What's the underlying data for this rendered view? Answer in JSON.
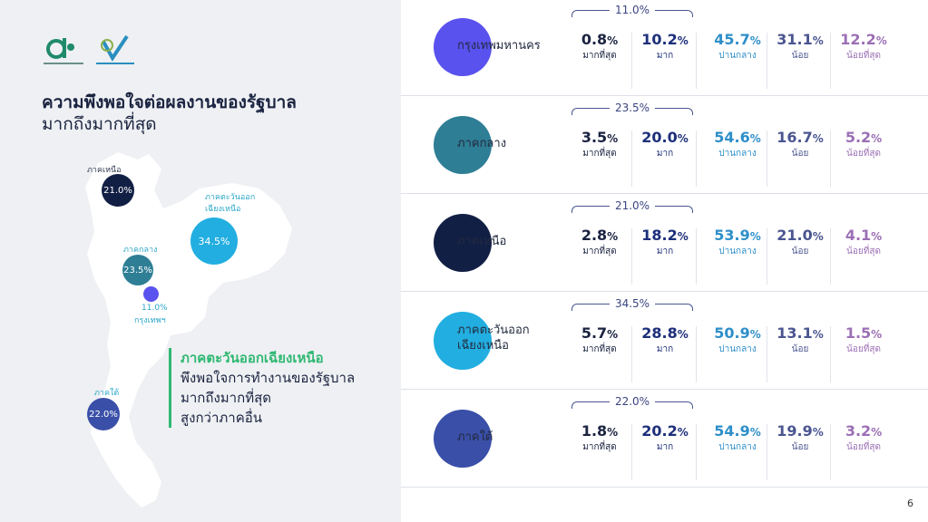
{
  "left": {
    "title": "ความพึงพอใจต่อผลงานของรัฐบาล",
    "subtitle": "มากถึงมากที่สุด",
    "map_bubbles": [
      {
        "label": "ภาคเหนือ",
        "value": "21.0%",
        "color": "#121f45"
      },
      {
        "label": "ภาคตะวันออก\nเฉียงเหนือ",
        "value": "34.5%",
        "color": "#22aee0"
      },
      {
        "label": "ภาคกลาง",
        "value": "23.5%",
        "color": "#2e7e95"
      },
      {
        "label": "กรุงเทพฯ",
        "value": "11.0%",
        "color": "#5a52ee"
      },
      {
        "label": "ภาคใต้",
        "value": "22.0%",
        "color": "#3a4fa8"
      }
    ],
    "callout": {
      "head": "ภาคตะวันออกเฉียงเหนือ",
      "lines": [
        "พึงพอใจการทำงานของรัฐบาล",
        "มากถึงมากที่สุด",
        "สูงกว่าภาคอื่น"
      ]
    }
  },
  "labels": {
    "l1": "มากที่สุด",
    "l2": "มาก",
    "l3": "ปานกลาง",
    "l4": "น้อย",
    "l5": "น้อยที่สุด"
  },
  "colors": {
    "c1": "#1a2340",
    "c2": "#1d2f7a",
    "c3": "#2e8fc9",
    "c4": "#4a5590",
    "c5": "#9b6fb5"
  },
  "regions": [
    {
      "name": "กรุงเทพมหานคร",
      "color": "#5a52ee",
      "top": "11.0%",
      "values": [
        "0.8",
        "10.2",
        "45.7",
        "31.1",
        "12.2"
      ]
    },
    {
      "name": "ภาคกลาง",
      "color": "#2e7e95",
      "top": "23.5%",
      "values": [
        "3.5",
        "20.0",
        "54.6",
        "16.7",
        "5.2"
      ]
    },
    {
      "name": "ภาคเหนือ",
      "color": "#121f45",
      "top": "21.0%",
      "values": [
        "2.8",
        "18.2",
        "53.9",
        "21.0",
        "4.1"
      ]
    },
    {
      "name": "ภาคตะวันออก\nเฉียงเหนือ",
      "color": "#22aee0",
      "top": "34.5%",
      "values": [
        "5.7",
        "28.8",
        "50.9",
        "13.1",
        "1.5"
      ]
    },
    {
      "name": "ภาคใต้",
      "color": "#3a4fa8",
      "top": "22.0%",
      "values": [
        "1.8",
        "20.2",
        "54.9",
        "19.9",
        "3.2"
      ]
    }
  ],
  "page_number": "6"
}
